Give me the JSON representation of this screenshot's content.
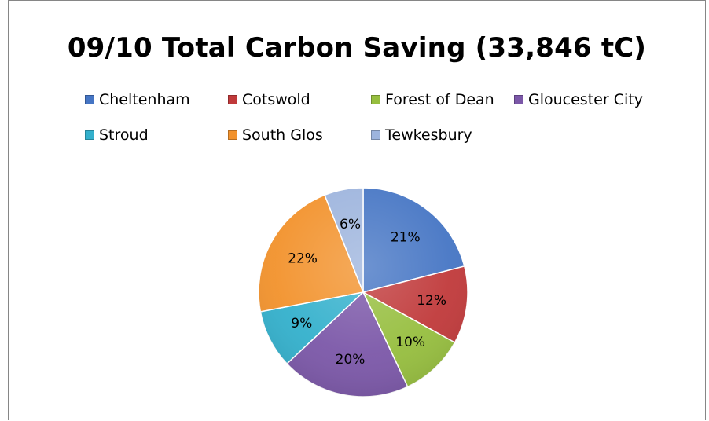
{
  "chart_data": {
    "type": "pie",
    "title": "09/10 Total Carbon Saving (33,846 tC)",
    "legend_position": "top",
    "slices": [
      {
        "label": "Cheltenham",
        "value": 21,
        "value_label": "21%",
        "color": "#4575c4"
      },
      {
        "label": "Cotswold",
        "value": 12,
        "value_label": "12%",
        "color": "#c0393a"
      },
      {
        "label": "Forest of Dean",
        "value": 10,
        "value_label": "10%",
        "color": "#96be3e"
      },
      {
        "label": "Gloucester City",
        "value": 20,
        "value_label": "20%",
        "color": "#7b57a8"
      },
      {
        "label": "Stroud",
        "value": 9,
        "value_label": "9%",
        "color": "#33b0cc"
      },
      {
        "label": "South Glos",
        "value": 22,
        "value_label": "22%",
        "color": "#f2922c"
      },
      {
        "label": "Tewkesbury",
        "value": 6,
        "value_label": "6%",
        "color": "#9db4dd"
      }
    ]
  }
}
